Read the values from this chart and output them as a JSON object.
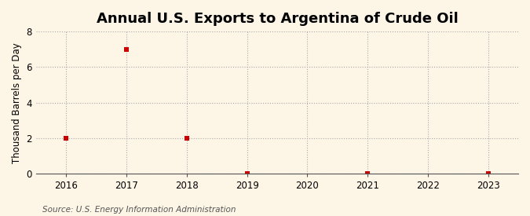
{
  "title": "Annual U.S. Exports to Argentina of Crude Oil",
  "ylabel": "Thousand Barrels per Day",
  "source": "Source: U.S. Energy Information Administration",
  "background_color": "#fdf5e6",
  "plot_bg_color": "#fdf5e6",
  "years": [
    2016,
    2017,
    2018,
    2019,
    2020,
    2021,
    2022,
    2023
  ],
  "values": [
    2.0,
    7.0,
    2.0,
    0.03,
    null,
    0.03,
    null,
    0.03
  ],
  "xlim": [
    2015.5,
    2023.5
  ],
  "ylim": [
    0,
    8
  ],
  "yticks": [
    0,
    2,
    4,
    6,
    8
  ],
  "xticks": [
    2016,
    2017,
    2018,
    2019,
    2020,
    2021,
    2022,
    2023
  ],
  "marker_color": "#cc0000",
  "marker": "s",
  "marker_size": 4,
  "grid_color": "#aaaaaa",
  "grid_linestyle": ":",
  "title_fontsize": 13,
  "label_fontsize": 8.5,
  "tick_fontsize": 8.5,
  "source_fontsize": 7.5
}
